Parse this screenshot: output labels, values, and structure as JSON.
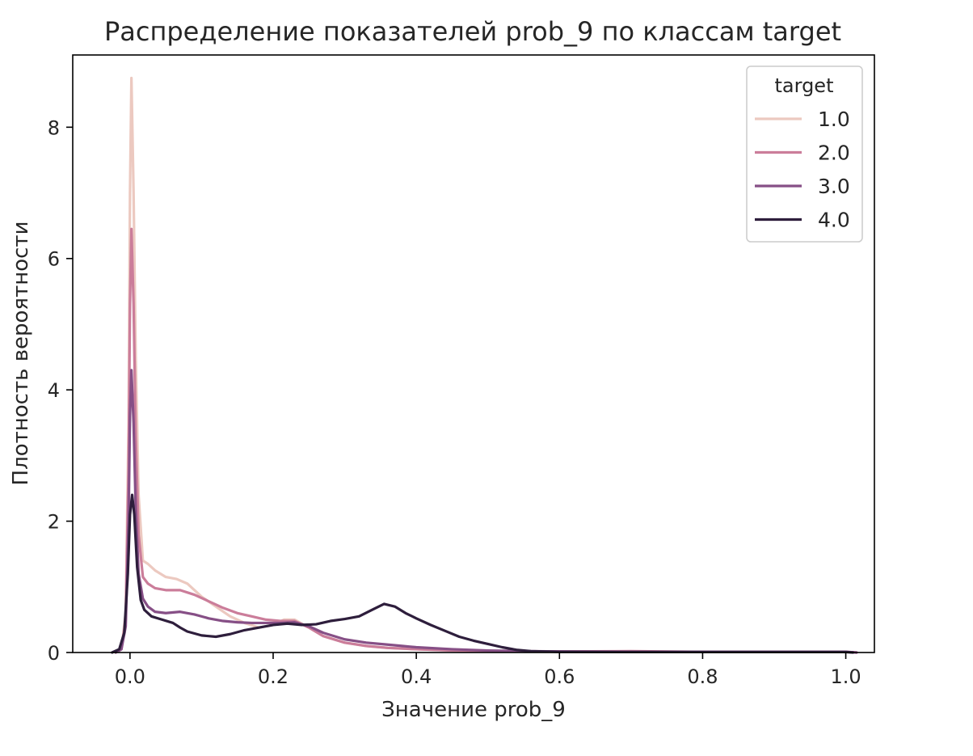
{
  "chart_data": {
    "type": "line",
    "title": "Распределение показателей prob_9 по классам target",
    "xlabel": "Значение prob_9",
    "ylabel": "Плотность вероятности",
    "xlim": [
      -0.08,
      1.04
    ],
    "ylim": [
      0,
      9.1
    ],
    "x_ticks": [
      0.0,
      0.2,
      0.4,
      0.6,
      0.8,
      1.0
    ],
    "x_tick_labels": [
      "0.0",
      "0.2",
      "0.4",
      "0.6",
      "0.8",
      "1.0"
    ],
    "y_ticks": [
      0,
      2,
      4,
      6,
      8
    ],
    "y_tick_labels": [
      "0",
      "2",
      "4",
      "6",
      "8"
    ],
    "grid": false,
    "legend": {
      "title": "target",
      "position": "top-right"
    },
    "series": [
      {
        "name": "1.0",
        "color": "#ecc9c0",
        "points": [
          [
            -0.02,
            0
          ],
          [
            -0.012,
            0.05
          ],
          [
            -0.006,
            0.6
          ],
          [
            -0.002,
            3.5
          ],
          [
            0.0,
            7.0
          ],
          [
            0.002,
            8.75
          ],
          [
            0.005,
            7.0
          ],
          [
            0.008,
            4.5
          ],
          [
            0.012,
            2.4
          ],
          [
            0.018,
            1.4
          ],
          [
            0.025,
            1.35
          ],
          [
            0.035,
            1.25
          ],
          [
            0.05,
            1.15
          ],
          [
            0.065,
            1.12
          ],
          [
            0.08,
            1.05
          ],
          [
            0.1,
            0.85
          ],
          [
            0.12,
            0.7
          ],
          [
            0.14,
            0.55
          ],
          [
            0.16,
            0.45
          ],
          [
            0.18,
            0.38
          ],
          [
            0.2,
            0.42
          ],
          [
            0.215,
            0.5
          ],
          [
            0.23,
            0.5
          ],
          [
            0.25,
            0.38
          ],
          [
            0.27,
            0.25
          ],
          [
            0.3,
            0.15
          ],
          [
            0.33,
            0.1
          ],
          [
            0.36,
            0.07
          ],
          [
            0.4,
            0.05
          ],
          [
            0.45,
            0.03
          ],
          [
            0.5,
            0.02
          ],
          [
            0.55,
            0.015
          ],
          [
            0.6,
            0.01
          ],
          [
            0.7,
            0.01
          ],
          [
            0.8,
            0.008
          ],
          [
            0.9,
            0.008
          ],
          [
            1.0,
            0.008
          ],
          [
            1.015,
            0
          ]
        ]
      },
      {
        "name": "2.0",
        "color": "#cb7d9a",
        "points": [
          [
            -0.02,
            0
          ],
          [
            -0.012,
            0.05
          ],
          [
            -0.006,
            0.5
          ],
          [
            -0.002,
            2.8
          ],
          [
            0.0,
            5.3
          ],
          [
            0.002,
            6.45
          ],
          [
            0.005,
            5.3
          ],
          [
            0.008,
            3.3
          ],
          [
            0.012,
            1.8
          ],
          [
            0.018,
            1.15
          ],
          [
            0.025,
            1.05
          ],
          [
            0.035,
            0.98
          ],
          [
            0.05,
            0.95
          ],
          [
            0.07,
            0.95
          ],
          [
            0.09,
            0.88
          ],
          [
            0.11,
            0.78
          ],
          [
            0.13,
            0.68
          ],
          [
            0.15,
            0.6
          ],
          [
            0.17,
            0.55
          ],
          [
            0.19,
            0.5
          ],
          [
            0.21,
            0.48
          ],
          [
            0.23,
            0.48
          ],
          [
            0.25,
            0.38
          ],
          [
            0.27,
            0.25
          ],
          [
            0.3,
            0.15
          ],
          [
            0.33,
            0.1
          ],
          [
            0.36,
            0.07
          ],
          [
            0.4,
            0.05
          ],
          [
            0.45,
            0.03
          ],
          [
            0.5,
            0.02
          ],
          [
            0.6,
            0.015
          ],
          [
            0.7,
            0.02
          ],
          [
            0.8,
            0.01
          ],
          [
            0.9,
            0.01
          ],
          [
            1.0,
            0.01
          ],
          [
            1.015,
            0
          ]
        ]
      },
      {
        "name": "3.0",
        "color": "#864f86",
        "points": [
          [
            -0.02,
            0
          ],
          [
            -0.012,
            0.05
          ],
          [
            -0.006,
            0.4
          ],
          [
            -0.002,
            2.0
          ],
          [
            0.0,
            3.6
          ],
          [
            0.002,
            4.3
          ],
          [
            0.005,
            3.5
          ],
          [
            0.008,
            2.2
          ],
          [
            0.012,
            1.2
          ],
          [
            0.018,
            0.82
          ],
          [
            0.025,
            0.7
          ],
          [
            0.035,
            0.62
          ],
          [
            0.05,
            0.6
          ],
          [
            0.07,
            0.62
          ],
          [
            0.09,
            0.58
          ],
          [
            0.11,
            0.52
          ],
          [
            0.13,
            0.48
          ],
          [
            0.15,
            0.46
          ],
          [
            0.17,
            0.45
          ],
          [
            0.19,
            0.45
          ],
          [
            0.21,
            0.45
          ],
          [
            0.23,
            0.46
          ],
          [
            0.25,
            0.4
          ],
          [
            0.27,
            0.3
          ],
          [
            0.3,
            0.2
          ],
          [
            0.33,
            0.15
          ],
          [
            0.36,
            0.12
          ],
          [
            0.38,
            0.1
          ],
          [
            0.4,
            0.08
          ],
          [
            0.45,
            0.05
          ],
          [
            0.5,
            0.03
          ],
          [
            0.55,
            0.02
          ],
          [
            0.6,
            0.015
          ],
          [
            0.7,
            0.01
          ],
          [
            0.8,
            0.01
          ],
          [
            0.9,
            0.01
          ],
          [
            1.0,
            0.01
          ],
          [
            1.015,
            0
          ]
        ]
      },
      {
        "name": "4.0",
        "color": "#2e1e3c",
        "points": [
          [
            -0.025,
            0
          ],
          [
            -0.015,
            0.05
          ],
          [
            -0.008,
            0.3
          ],
          [
            -0.003,
            1.2
          ],
          [
            0.0,
            2.1
          ],
          [
            0.003,
            2.4
          ],
          [
            0.006,
            2.1
          ],
          [
            0.01,
            1.3
          ],
          [
            0.015,
            0.8
          ],
          [
            0.02,
            0.65
          ],
          [
            0.03,
            0.55
          ],
          [
            0.045,
            0.5
          ],
          [
            0.06,
            0.45
          ],
          [
            0.07,
            0.38
          ],
          [
            0.08,
            0.32
          ],
          [
            0.1,
            0.26
          ],
          [
            0.12,
            0.24
          ],
          [
            0.14,
            0.28
          ],
          [
            0.16,
            0.34
          ],
          [
            0.18,
            0.38
          ],
          [
            0.2,
            0.42
          ],
          [
            0.22,
            0.44
          ],
          [
            0.24,
            0.42
          ],
          [
            0.26,
            0.43
          ],
          [
            0.28,
            0.48
          ],
          [
            0.3,
            0.51
          ],
          [
            0.32,
            0.55
          ],
          [
            0.34,
            0.66
          ],
          [
            0.355,
            0.74
          ],
          [
            0.37,
            0.7
          ],
          [
            0.385,
            0.6
          ],
          [
            0.4,
            0.52
          ],
          [
            0.42,
            0.42
          ],
          [
            0.44,
            0.33
          ],
          [
            0.46,
            0.24
          ],
          [
            0.48,
            0.18
          ],
          [
            0.5,
            0.13
          ],
          [
            0.52,
            0.08
          ],
          [
            0.54,
            0.04
          ],
          [
            0.56,
            0.02
          ],
          [
            0.6,
            0.01
          ],
          [
            0.7,
            0.008
          ],
          [
            0.8,
            0.008
          ],
          [
            0.9,
            0.008
          ],
          [
            1.0,
            0.008
          ],
          [
            1.01,
            0
          ]
        ]
      }
    ]
  }
}
